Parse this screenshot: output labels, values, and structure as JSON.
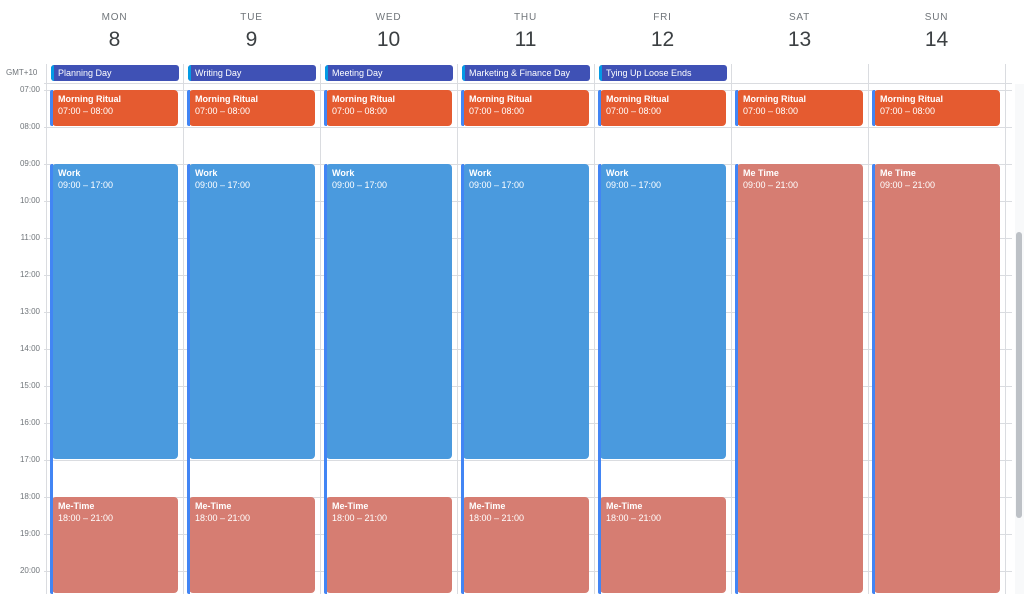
{
  "timezone": "GMT+10",
  "days": [
    {
      "dow": "MON",
      "num": "8",
      "allday": "Planning Day",
      "weekend": false
    },
    {
      "dow": "TUE",
      "num": "9",
      "allday": "Writing Day",
      "weekend": false
    },
    {
      "dow": "WED",
      "num": "10",
      "allday": "Meeting Day",
      "weekend": false
    },
    {
      "dow": "THU",
      "num": "11",
      "allday": "Marketing & Finance Day",
      "weekend": false
    },
    {
      "dow": "FRI",
      "num": "12",
      "allday": "Tying Up Loose Ends",
      "weekend": false
    },
    {
      "dow": "SAT",
      "num": "13",
      "allday": "",
      "weekend": true
    },
    {
      "dow": "SUN",
      "num": "14",
      "allday": "",
      "weekend": true
    }
  ],
  "hours": [
    "07:00",
    "08:00",
    "09:00",
    "10:00",
    "11:00",
    "12:00",
    "13:00",
    "14:00",
    "15:00",
    "16:00",
    "17:00",
    "18:00",
    "19:00",
    "20:00"
  ],
  "weekday_events": [
    {
      "title": "Morning Ritual",
      "time": "07:00 – 08:00",
      "start": 7,
      "end": 8,
      "color": "#e55b30"
    },
    {
      "title": "Work",
      "time": "09:00 – 17:00",
      "start": 9,
      "end": 17,
      "color": "#4a9ade"
    },
    {
      "title": "Me-Time",
      "time": "18:00 – 21:00",
      "start": 18,
      "end": 21,
      "color": "#d67d72"
    }
  ],
  "weekend_events": [
    {
      "title": "Morning Ritual",
      "time": "07:00 – 08:00",
      "start": 7,
      "end": 8,
      "color": "#e55b30"
    },
    {
      "title": "Me Time",
      "time": "09:00 – 21:00",
      "start": 9,
      "end": 21,
      "color": "#d67d72"
    }
  ],
  "colors": {
    "allday_chip": "#3f51b5",
    "stripe": "#4285f4"
  }
}
